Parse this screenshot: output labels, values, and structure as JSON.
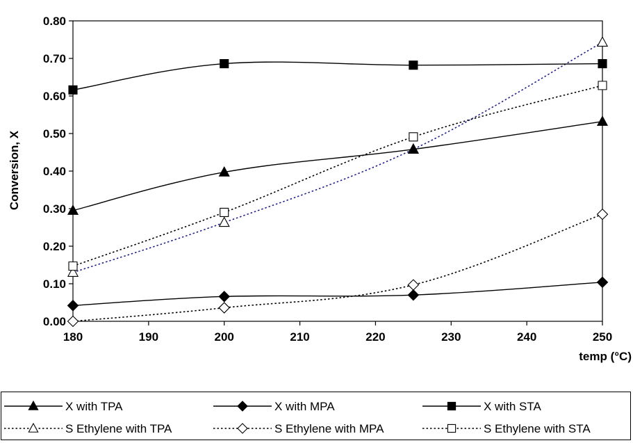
{
  "chart_data": {
    "type": "line",
    "xlabel": "temp (°C)",
    "ylabel": "Conversion, X",
    "xlim": [
      180,
      250
    ],
    "ylim": [
      0,
      0.8
    ],
    "xticks": [
      "180",
      "190",
      "200",
      "210",
      "220",
      "230",
      "240",
      "250"
    ],
    "yticks": [
      "0.00",
      "0.10",
      "0.20",
      "0.30",
      "0.40",
      "0.50",
      "0.60",
      "0.70",
      "0.80"
    ],
    "x": [
      180,
      200,
      225,
      250
    ],
    "grid": "off",
    "legend_position": "bottom",
    "series": [
      {
        "name": "X with TPA",
        "values": [
          0.295,
          0.397,
          0.458,
          0.532
        ],
        "marker": "triangle",
        "filled": true,
        "line": "solid",
        "color": "#000000"
      },
      {
        "name": "X with MPA",
        "values": [
          0.042,
          0.066,
          0.07,
          0.104
        ],
        "marker": "diamond",
        "filled": true,
        "line": "solid",
        "color": "#000000"
      },
      {
        "name": "X with STA",
        "values": [
          0.616,
          0.686,
          0.682,
          0.686
        ],
        "marker": "square",
        "filled": true,
        "line": "solid",
        "color": "#000000"
      },
      {
        "name": "S Ethylene with TPA",
        "values": [
          0.13,
          0.263,
          0.458,
          0.743
        ],
        "marker": "triangle",
        "filled": false,
        "line": "dotted",
        "color": "#1f1f8f"
      },
      {
        "name": "S Ethylene with MPA",
        "values": [
          0.0,
          0.036,
          0.097,
          0.285
        ],
        "marker": "diamond",
        "filled": false,
        "line": "dotted",
        "color": "#000000"
      },
      {
        "name": "S Ethylene with STA",
        "values": [
          0.147,
          0.29,
          0.491,
          0.628
        ],
        "marker": "square",
        "filled": false,
        "line": "dotted",
        "color": "#000000"
      }
    ]
  }
}
